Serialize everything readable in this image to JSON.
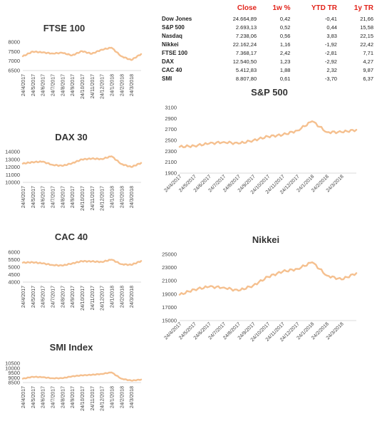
{
  "table": {
    "headers": [
      "",
      "Close",
      "1w %",
      "YTD TR",
      "1y TR"
    ],
    "rows": [
      {
        "name": "Dow Jones",
        "close": "24.664,89",
        "w1": "0,42",
        "ytd": "-0,41",
        "y1": "21,66"
      },
      {
        "name": "S&P 500",
        "close": "2.693,13",
        "w1": "0,52",
        "ytd": "0,44",
        "y1": "15,58"
      },
      {
        "name": "Nasdaq",
        "close": "7.238,06",
        "w1": "0,56",
        "ytd": "3,83",
        "y1": "22,15"
      },
      {
        "name": "Nikkei",
        "close": "22.162,24",
        "w1": "1,16",
        "ytd": "-1,92",
        "y1": "22,42"
      },
      {
        "name": "FTSE 100",
        "close": "7.368,17",
        "w1": "2,42",
        "ytd": "-2,81",
        "y1": "7,71"
      },
      {
        "name": "DAX",
        "close": "12.540,50",
        "w1": "1,23",
        "ytd": "-2,92",
        "y1": "4,27"
      },
      {
        "name": "CAC 40",
        "close": "5.412,83",
        "w1": "1,88",
        "ytd": "2,32",
        "y1": "9,87"
      },
      {
        "name": "SMI",
        "close": "8.807,80",
        "w1": "0,61",
        "ytd": "-3,70",
        "y1": "6,37"
      }
    ]
  },
  "colors": {
    "line": "#f5c08f",
    "header": "#e2231a"
  },
  "chart_data": [
    {
      "id": "ftse",
      "type": "line",
      "title": "FTSE 100",
      "ylim": [
        6500,
        8000
      ],
      "yticks": [
        6500,
        7000,
        7500,
        8000
      ],
      "x": [
        "24/4/2017",
        "24/5/2017",
        "24/6/2017",
        "24/7/2017",
        "24/8/2017",
        "24/9/2017",
        "24/10/2017",
        "24/11/2017",
        "24/12/2017",
        "24/1/2018",
        "24/2/2018",
        "24/3/2018",
        "24/4/2018"
      ],
      "xticks": [
        "24/4/2017",
        "24/5/2017",
        "24/6/2017",
        "24/7/2017",
        "24/8/2017",
        "24/9/2017",
        "24/10/2017",
        "24/11/2017",
        "24/12/2017",
        "24/1/2018",
        "24/2/2018",
        "24/3/2018"
      ],
      "values": [
        7250,
        7500,
        7450,
        7400,
        7430,
        7300,
        7520,
        7380,
        7600,
        7700,
        7250,
        7050,
        7368
      ]
    },
    {
      "id": "dax",
      "type": "line",
      "title": "DAX 30",
      "ylim": [
        10000,
        14000
      ],
      "yticks": [
        10000,
        11000,
        12000,
        13000,
        14000
      ],
      "x": [
        "24/4/2017",
        "24/5/2017",
        "24/6/2017",
        "24/7/2017",
        "24/8/2017",
        "24/9/2017",
        "24/10/2017",
        "24/11/2017",
        "24/12/2017",
        "24/1/2018",
        "24/2/2018",
        "24/3/2018",
        "24/4/2018"
      ],
      "xticks": [
        "24/4/2017",
        "24/5/2017",
        "24/6/2017",
        "24/7/2017",
        "24/8/2017",
        "24/9/2017",
        "24/10/2017",
        "24/11/2017",
        "24/12/2017",
        "24/1/2018",
        "24/2/2018",
        "24/3/2018"
      ],
      "values": [
        12450,
        12650,
        12700,
        12300,
        12150,
        12500,
        13000,
        13100,
        13050,
        13400,
        12400,
        12000,
        12540
      ]
    },
    {
      "id": "cac",
      "type": "line",
      "title": "CAC 40",
      "ylim": [
        4000,
        6000
      ],
      "yticks": [
        4000,
        4500,
        5000,
        5500,
        6000
      ],
      "x": [
        "24/4/2017",
        "24/5/2017",
        "24/6/2017",
        "24/7/2017",
        "24/8/2017",
        "24/9/2017",
        "24/10/2017",
        "24/11/2017",
        "24/12/2017",
        "24/1/2018",
        "24/2/2018",
        "24/3/2018",
        "24/4/2018"
      ],
      "xticks": [
        "24/4/2017",
        "24/5/2017",
        "24/6/2017",
        "24/7/2017",
        "24/8/2017",
        "24/9/2017",
        "24/10/2017",
        "24/11/2017",
        "24/12/2017",
        "24/1/2018",
        "24/2/2018",
        "24/3/2018"
      ],
      "values": [
        5300,
        5330,
        5250,
        5150,
        5100,
        5250,
        5400,
        5380,
        5350,
        5500,
        5200,
        5150,
        5412
      ]
    },
    {
      "id": "smi",
      "type": "line",
      "title": "SMI Index",
      "ylim": [
        8500,
        10500
      ],
      "yticks": [
        8500,
        9000,
        9500,
        10000,
        10500
      ],
      "x": [
        "24/4/2017",
        "24/5/2017",
        "24/6/2017",
        "24/7/2017",
        "24/8/2017",
        "24/9/2017",
        "24/10/2017",
        "24/11/2017",
        "24/12/2017",
        "24/1/2018",
        "24/2/2018",
        "24/3/2018",
        "24/4/2018"
      ],
      "xticks": [
        "24/4/2017",
        "24/5/2017",
        "24/6/2017",
        "24/7/2017",
        "24/8/2017",
        "24/9/2017",
        "24/10/2017",
        "24/11/2017",
        "24/12/2017",
        "24/1/2018",
        "24/2/2018",
        "24/3/2018"
      ],
      "values": [
        8900,
        9100,
        9050,
        8950,
        8950,
        9150,
        9250,
        9300,
        9400,
        9550,
        8900,
        8700,
        8808
      ]
    },
    {
      "id": "sp500",
      "type": "line",
      "title": "S&P 500",
      "ylim": [
        1900,
        3100
      ],
      "yticks": [
        1900,
        2100,
        2300,
        2500,
        2700,
        2900,
        3100
      ],
      "x": [
        "24/4/2017",
        "24/5/2017",
        "24/6/2017",
        "24/7/2017",
        "24/8/2017",
        "24/9/2017",
        "24/10/2017",
        "24/11/2017",
        "24/12/2017",
        "24/1/2018",
        "24/2/2018",
        "24/3/2018",
        "24/4/2018"
      ],
      "xticks": [
        "24/4/2017",
        "24/5/2017",
        "24/6/2017",
        "24/7/2017",
        "24/8/2017",
        "24/9/2017",
        "24/10/2017",
        "24/11/2017",
        "24/12/2017",
        "24/1/2018",
        "24/2/2018",
        "24/3/2018"
      ],
      "values": [
        2380,
        2400,
        2440,
        2470,
        2440,
        2500,
        2570,
        2600,
        2680,
        2850,
        2650,
        2650,
        2693
      ]
    },
    {
      "id": "nikkei",
      "type": "line",
      "title": "Nikkei",
      "ylim": [
        15000,
        25000
      ],
      "yticks": [
        15000,
        17000,
        19000,
        21000,
        23000,
        25000
      ],
      "x": [
        "24/4/2017",
        "24/5/2017",
        "24/6/2017",
        "24/7/2017",
        "24/8/2017",
        "24/9/2017",
        "24/10/2017",
        "24/11/2017",
        "24/12/2017",
        "24/1/2018",
        "24/2/2018",
        "24/3/2018",
        "24/4/2018"
      ],
      "xticks": [
        "24/4/2017",
        "24/5/2017",
        "24/6/2017",
        "24/7/2017",
        "24/8/2017",
        "24/9/2017",
        "24/10/2017",
        "24/11/2017",
        "24/12/2017",
        "24/1/2018",
        "24/2/2018",
        "24/3/2018"
      ],
      "values": [
        18900,
        19700,
        20100,
        20000,
        19500,
        20300,
        21600,
        22400,
        22800,
        23800,
        21800,
        21200,
        22162
      ]
    }
  ]
}
